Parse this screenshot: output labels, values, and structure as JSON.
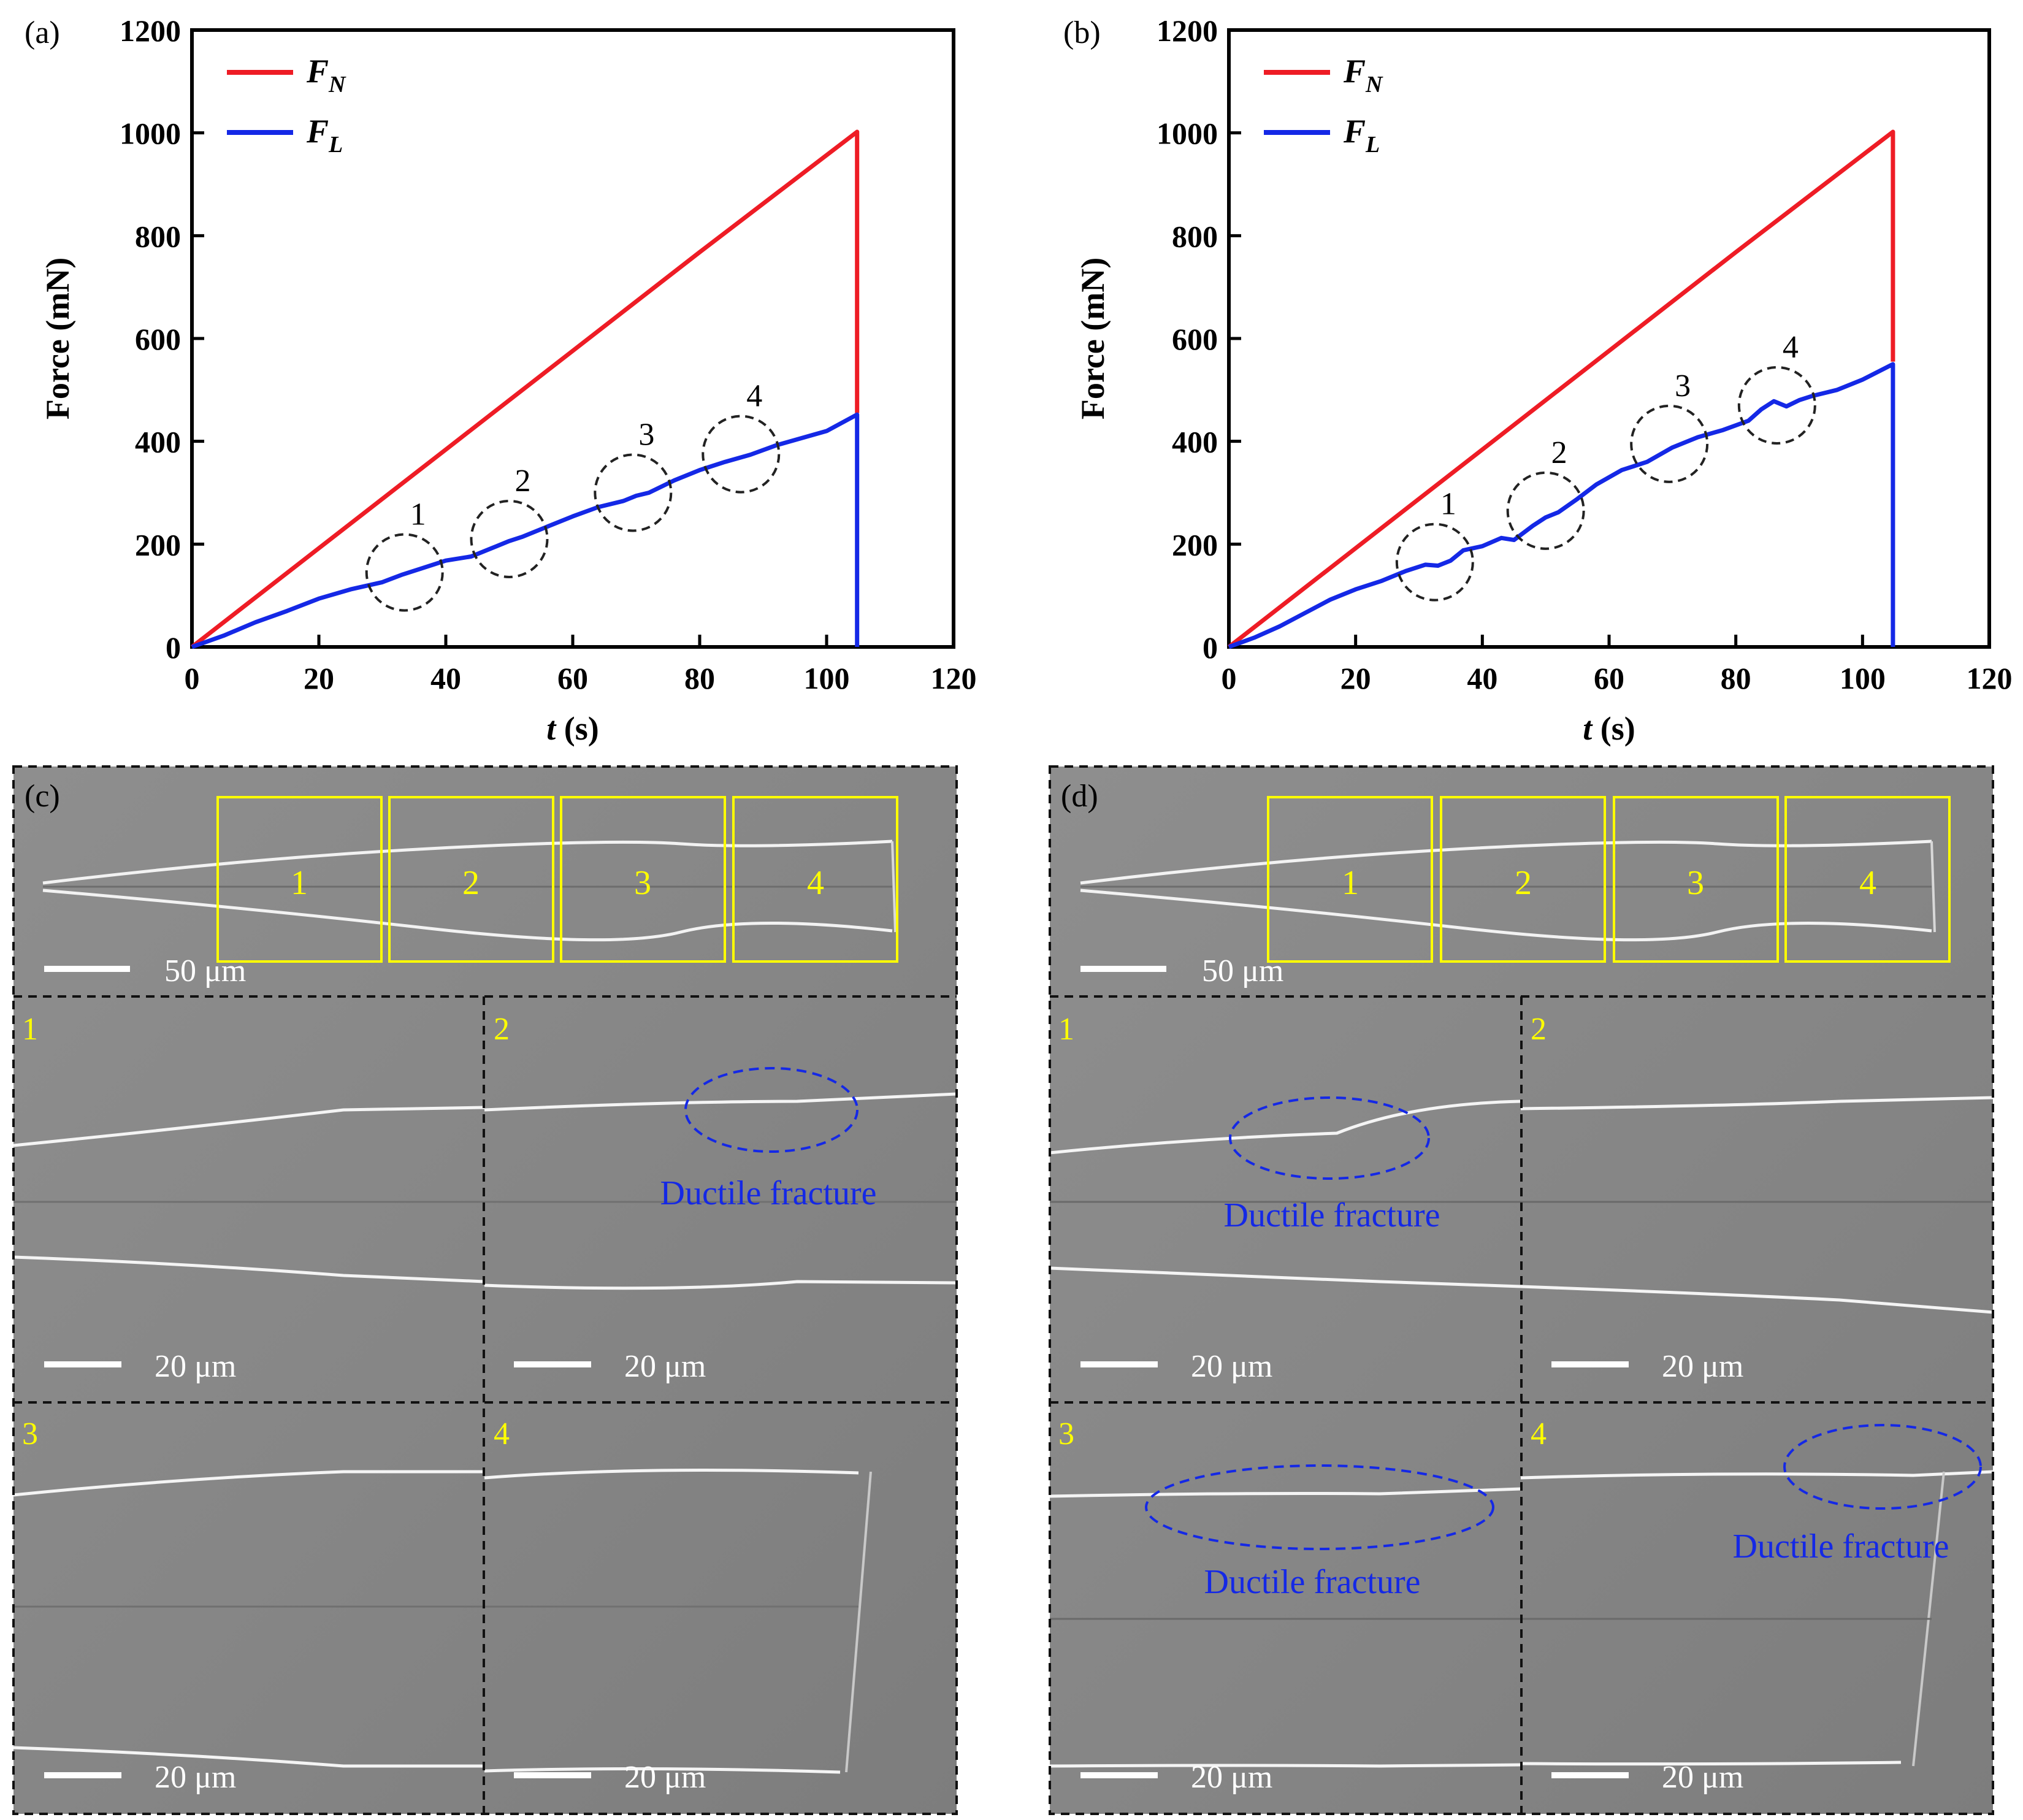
{
  "chart_data": [
    {
      "type": "line",
      "panel_label": "(a)",
      "xlabel_italic": "t",
      "xlabel_unit": " (s)",
      "ylabel": "Force (mN)",
      "xlim": [
        0,
        120
      ],
      "ylim": [
        0,
        1200
      ],
      "xticks": [
        0,
        20,
        40,
        60,
        80,
        100,
        120
      ],
      "yticks": [
        0,
        200,
        400,
        600,
        800,
        1000,
        1200
      ],
      "grid": false,
      "legend_position": "top-left",
      "series": [
        {
          "name": "F",
          "subscript": "N",
          "color": "#ee1c25",
          "x": [
            0,
            20,
            40,
            60,
            80,
            104.8,
            104.8
          ],
          "y": [
            0,
            192,
            384,
            576,
            768,
            1002,
            455
          ]
        },
        {
          "name": "F",
          "subscript": "L",
          "color": "#1428e6",
          "x": [
            0,
            5,
            10,
            15,
            20,
            25,
            30,
            33,
            36,
            40,
            44,
            48,
            50,
            52,
            56,
            60,
            64,
            68,
            70,
            72,
            76,
            80,
            84,
            88,
            92,
            96,
            100,
            104.8,
            104.8,
            104.8
          ],
          "y": [
            0,
            22,
            48,
            70,
            94,
            112,
            126,
            140,
            152,
            168,
            176,
            196,
            206,
            214,
            234,
            254,
            272,
            284,
            294,
            300,
            324,
            344,
            360,
            374,
            392,
            406,
            420,
            452,
            300,
            0
          ]
        }
      ],
      "annotations": [
        {
          "label": "1",
          "x": 33.5,
          "y": 145
        },
        {
          "label": "2",
          "x": 50,
          "y": 210
        },
        {
          "label": "3",
          "x": 69.5,
          "y": 300
        },
        {
          "label": "4",
          "x": 86.5,
          "y": 375
        }
      ]
    },
    {
      "type": "line",
      "panel_label": "(b)",
      "xlabel_italic": "t",
      "xlabel_unit": " (s)",
      "ylabel": "Force (mN)",
      "xlim": [
        0,
        120
      ],
      "ylim": [
        0,
        1200
      ],
      "xticks": [
        0,
        20,
        40,
        60,
        80,
        100,
        120
      ],
      "yticks": [
        0,
        200,
        400,
        600,
        800,
        1000,
        1200
      ],
      "grid": false,
      "legend_position": "top-left",
      "series": [
        {
          "name": "F",
          "subscript": "N",
          "color": "#ee1c25",
          "x": [
            0,
            20,
            40,
            60,
            80,
            104.8,
            104.8
          ],
          "y": [
            0,
            192,
            384,
            576,
            768,
            1002,
            555
          ]
        },
        {
          "name": "F",
          "subscript": "L",
          "color": "#1428e6",
          "x": [
            0,
            4,
            8,
            12,
            16,
            20,
            24,
            28,
            31,
            33,
            35,
            37,
            40,
            43,
            45,
            48,
            50,
            52,
            55,
            58,
            62,
            66,
            70,
            74,
            78,
            82,
            84,
            86,
            88,
            90,
            92,
            96,
            100,
            104.8,
            104.8,
            104.8
          ],
          "y": [
            0,
            18,
            40,
            66,
            92,
            112,
            128,
            148,
            160,
            158,
            168,
            188,
            196,
            212,
            208,
            236,
            252,
            262,
            288,
            316,
            344,
            360,
            388,
            408,
            422,
            440,
            462,
            478,
            468,
            480,
            488,
            500,
            520,
            550,
            400,
            0
          ]
        }
      ],
      "annotations": [
        {
          "label": "1",
          "x": 32.5,
          "y": 165
        },
        {
          "label": "2",
          "x": 50,
          "y": 265
        },
        {
          "label": "3",
          "x": 69.5,
          "y": 395
        },
        {
          "label": "4",
          "x": 86.5,
          "y": 470
        }
      ]
    }
  ],
  "micrographs": {
    "c": {
      "panel_label": "(c)",
      "overview_scale": "50 μm",
      "boxes": [
        "1",
        "2",
        "3",
        "4"
      ],
      "details": [
        {
          "number": "1",
          "scale": "20 μm",
          "annotation": ""
        },
        {
          "number": "2",
          "scale": "20 μm",
          "annotation": "Ductile fracture"
        },
        {
          "number": "3",
          "scale": "20 μm",
          "annotation": ""
        },
        {
          "number": "4",
          "scale": "20 μm",
          "annotation": ""
        }
      ]
    },
    "d": {
      "panel_label": "(d)",
      "overview_scale": "50 μm",
      "boxes": [
        "1",
        "2",
        "3",
        "4"
      ],
      "details": [
        {
          "number": "1",
          "scale": "20 μm",
          "annotation": "Ductile fracture"
        },
        {
          "number": "2",
          "scale": "20 μm",
          "annotation": ""
        },
        {
          "number": "3",
          "scale": "20 μm",
          "annotation": "Ductile fracture"
        },
        {
          "number": "4",
          "scale": "20 μm",
          "annotation": "Ductile fracture"
        }
      ]
    }
  }
}
